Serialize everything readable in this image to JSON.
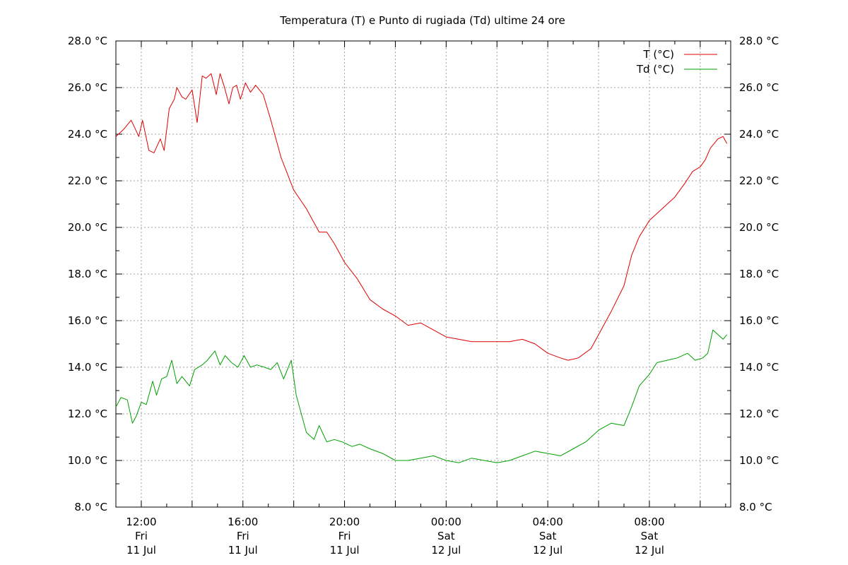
{
  "chart_data": {
    "type": "line",
    "title": "Temperatura (T) e Punto di rugiada (Td) ultime 24 ore",
    "xlabel": "",
    "ylabel": "",
    "ylim": [
      8,
      28
    ],
    "y_tick_labels": [
      "8.0 °C",
      "10.0 °C",
      "12.0 °C",
      "14.0 °C",
      "16.0 °C",
      "18.0 °C",
      "20.0 °C",
      "22.0 °C",
      "24.0 °C",
      "26.0 °C",
      "28.0 °C"
    ],
    "x_ticks": [
      {
        "hour": 12,
        "time": "12:00",
        "day": "Fri",
        "date": "11 Jul"
      },
      {
        "hour": 16,
        "time": "16:00",
        "day": "Fri",
        "date": "11 Jul"
      },
      {
        "hour": 20,
        "time": "20:00",
        "day": "Fri",
        "date": "11 Jul"
      },
      {
        "hour": 24,
        "time": "00:00",
        "day": "Sat",
        "date": "12 Jul"
      },
      {
        "hour": 28,
        "time": "04:00",
        "day": "Sat",
        "date": "12 Jul"
      },
      {
        "hour": 32,
        "time": "08:00",
        "day": "Sat",
        "date": "12 Jul"
      }
    ],
    "xlim_hours": [
      11,
      35.2
    ],
    "grid": true,
    "legend_position": "top-right",
    "series": [
      {
        "name": "T (°C)",
        "color": "#e00000",
        "x": [
          11,
          11.3,
          11.6,
          11.9,
          12.05,
          12.3,
          12.5,
          12.75,
          12.9,
          13.1,
          13.3,
          13.4,
          13.6,
          13.75,
          14.0,
          14.2,
          14.4,
          14.55,
          14.75,
          14.95,
          15.1,
          15.25,
          15.45,
          15.6,
          15.75,
          15.9,
          16.1,
          16.3,
          16.5,
          16.8,
          17.1,
          17.5,
          18.0,
          18.5,
          19.0,
          19.3,
          19.6,
          20.0,
          20.5,
          21.0,
          21.5,
          22.0,
          22.5,
          23.0,
          23.5,
          24.0,
          24.5,
          25.0,
          25.5,
          26.0,
          26.5,
          27.0,
          27.5,
          28.0,
          28.5,
          28.8,
          29.2,
          29.7,
          30.0,
          30.5,
          31.0,
          31.3,
          31.6,
          32.0,
          32.3,
          32.7,
          33.0,
          33.4,
          33.7,
          34.0,
          34.2,
          34.4,
          34.7,
          34.9,
          35.05
        ],
        "values": [
          23.9,
          24.2,
          24.6,
          23.9,
          24.6,
          23.3,
          23.2,
          23.8,
          23.3,
          25.1,
          25.5,
          26.0,
          25.6,
          25.5,
          25.9,
          24.5,
          26.5,
          26.4,
          26.6,
          25.7,
          26.6,
          26.1,
          25.3,
          26.0,
          26.1,
          25.5,
          26.2,
          25.8,
          26.1,
          25.7,
          24.6,
          23.0,
          21.6,
          20.8,
          19.8,
          19.8,
          19.3,
          18.5,
          17.8,
          16.9,
          16.5,
          16.2,
          15.8,
          15.9,
          15.6,
          15.3,
          15.2,
          15.1,
          15.1,
          15.1,
          15.1,
          15.2,
          15.0,
          14.6,
          14.4,
          14.3,
          14.4,
          14.8,
          15.4,
          16.4,
          17.5,
          18.8,
          19.6,
          20.3,
          20.6,
          21.0,
          21.3,
          21.9,
          22.4,
          22.6,
          22.9,
          23.4,
          23.8,
          23.9,
          23.6
        ]
      },
      {
        "name": "Td (°C)",
        "color": "#00a000",
        "x": [
          11,
          11.2,
          11.45,
          11.65,
          11.8,
          12.0,
          12.2,
          12.45,
          12.6,
          12.8,
          13.0,
          13.2,
          13.4,
          13.6,
          13.9,
          14.1,
          14.4,
          14.6,
          14.9,
          15.1,
          15.3,
          15.55,
          15.8,
          16.05,
          16.3,
          16.55,
          16.85,
          17.1,
          17.35,
          17.6,
          17.9,
          18.1,
          18.3,
          18.5,
          18.8,
          19.0,
          19.3,
          19.6,
          19.9,
          20.3,
          20.6,
          21.0,
          21.5,
          22.0,
          22.5,
          23.0,
          23.5,
          24.0,
          24.5,
          25.0,
          25.5,
          26.0,
          26.5,
          27.0,
          27.5,
          28.0,
          28.5,
          29.0,
          29.5,
          30.0,
          30.5,
          31.0,
          31.3,
          31.6,
          32.0,
          32.3,
          32.7,
          33.1,
          33.5,
          33.8,
          34.1,
          34.3,
          34.5,
          34.7,
          34.9,
          35.05
        ],
        "values": [
          12.3,
          12.7,
          12.6,
          11.6,
          11.9,
          12.5,
          12.4,
          13.4,
          12.8,
          13.5,
          13.6,
          14.3,
          13.3,
          13.6,
          13.2,
          13.9,
          14.1,
          14.3,
          14.7,
          14.1,
          14.5,
          14.2,
          14.0,
          14.5,
          14.0,
          14.1,
          14.0,
          13.9,
          14.2,
          13.5,
          14.3,
          12.8,
          12.0,
          11.2,
          10.9,
          11.5,
          10.8,
          10.9,
          10.8,
          10.6,
          10.7,
          10.5,
          10.3,
          10.0,
          10.0,
          10.1,
          10.2,
          10.0,
          9.9,
          10.1,
          10.0,
          9.9,
          10.0,
          10.2,
          10.4,
          10.3,
          10.2,
          10.5,
          10.8,
          11.3,
          11.6,
          11.5,
          12.3,
          13.2,
          13.7,
          14.2,
          14.3,
          14.4,
          14.6,
          14.3,
          14.4,
          14.6,
          15.6,
          15.4,
          15.2,
          15.4
        ]
      }
    ]
  }
}
